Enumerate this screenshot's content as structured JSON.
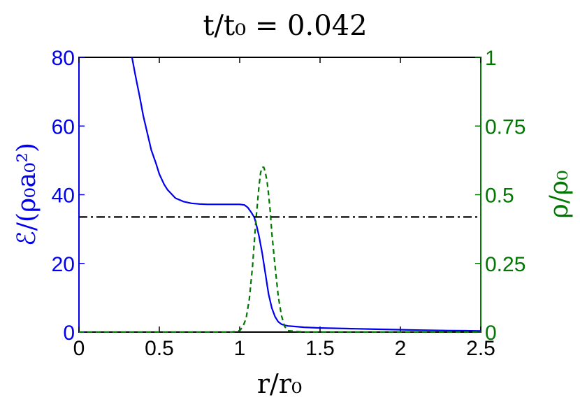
{
  "chart_data": {
    "type": "line",
    "title": "t/t₀ = 0.042",
    "xlabel": "r/r₀",
    "ylabel_left": "ℰ/(ρ₀a₀²)",
    "ylabel_right": "ρ/ρ₀",
    "xlim": [
      0,
      2.5
    ],
    "ylim_left": [
      0,
      80
    ],
    "ylim_right": [
      0,
      1
    ],
    "x_ticks": [
      "0",
      "0.5",
      "1",
      "1.5",
      "2",
      "2.5"
    ],
    "y_left_ticks": [
      "0",
      "20",
      "40",
      "60",
      "80"
    ],
    "y_right_ticks": [
      "0",
      "0.25",
      "0.5",
      "0.75",
      "1"
    ],
    "grid": false,
    "colors": {
      "energy": "#0000ee",
      "density": "#007700",
      "reference": "#000000",
      "axis_left": "#0000ee",
      "axis_right": "#007700"
    },
    "series": [
      {
        "axis": "left",
        "style": "solid",
        "x": [
          0.33,
          0.35,
          0.38,
          0.4,
          0.43,
          0.45,
          0.48,
          0.5,
          0.53,
          0.55,
          0.58,
          0.6,
          0.65,
          0.7,
          0.75,
          0.8,
          0.85,
          0.9,
          0.95,
          1.0,
          1.03,
          1.05,
          1.07,
          1.09,
          1.1,
          1.12,
          1.14,
          1.16,
          1.18,
          1.2,
          1.22,
          1.24,
          1.26,
          1.28,
          1.3,
          1.35,
          1.4,
          1.5,
          1.6,
          1.7,
          1.8,
          1.9,
          2.0,
          2.1,
          2.2,
          2.3,
          2.4,
          2.5
        ],
        "values": [
          80,
          75,
          68,
          63,
          57,
          53,
          49,
          46,
          43,
          41.5,
          40,
          39,
          38,
          37.5,
          37.3,
          37.2,
          37.2,
          37.2,
          37.2,
          37.2,
          37,
          36.3,
          35,
          33.5,
          32,
          28,
          23,
          17,
          11,
          7,
          4.5,
          3,
          2.3,
          2,
          1.8,
          1.6,
          1.4,
          1.2,
          1.1,
          1.0,
          0.9,
          0.8,
          0.7,
          0.6,
          0.5,
          0.45,
          0.4,
          0.35
        ]
      },
      {
        "axis": "right",
        "style": "dashed",
        "x": [
          0,
          0.5,
          0.95,
          1.0,
          1.02,
          1.04,
          1.06,
          1.08,
          1.1,
          1.12,
          1.13,
          1.14,
          1.15,
          1.16,
          1.17,
          1.18,
          1.19,
          1.2,
          1.22,
          1.24,
          1.26,
          1.28,
          1.3,
          1.4,
          1.5,
          2.0,
          2.5
        ],
        "values": [
          0,
          0,
          0,
          0.005,
          0.02,
          0.05,
          0.12,
          0.24,
          0.4,
          0.53,
          0.58,
          0.6,
          0.6,
          0.58,
          0.55,
          0.5,
          0.44,
          0.36,
          0.24,
          0.13,
          0.06,
          0.02,
          0.005,
          0,
          0,
          0,
          0
        ]
      },
      {
        "axis": "left",
        "style": "dashdot",
        "x": [
          0,
          2.5
        ],
        "values": [
          33.5,
          33.5
        ]
      }
    ]
  }
}
